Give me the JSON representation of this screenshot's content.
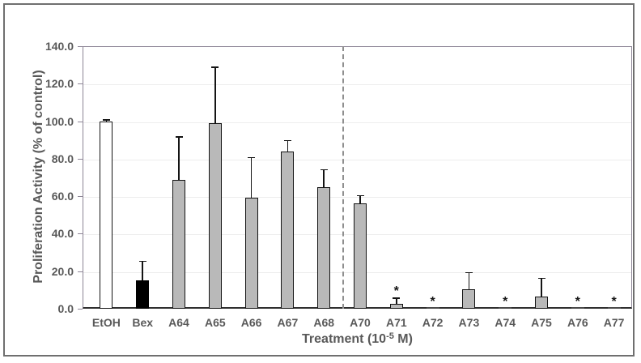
{
  "figure": {
    "y_axis_title": "Proliferation Activity (% of control)",
    "x_axis_title_prefix": "Treatment (10",
    "x_axis_title_sup": "-5",
    "x_axis_title_suffix": " M)"
  },
  "chart_data": {
    "type": "bar",
    "title": "",
    "xlabel": "Treatment (10^-5 M)",
    "ylabel": "Proliferation Activity (% of control)",
    "ylim": [
      0,
      140
    ],
    "ytick_step": 20,
    "ytick_labels": [
      "0.0",
      "20.0",
      "40.0",
      "60.0",
      "80.0",
      "100.0",
      "120.0",
      "140.0"
    ],
    "grid": "horizontal light gray, legend none",
    "categories": [
      "EtOH",
      "Bex",
      "A64",
      "A65",
      "A66",
      "A67",
      "A68",
      "A70",
      "A71",
      "A72",
      "A73",
      "A74",
      "A75",
      "A76",
      "A77"
    ],
    "values": [
      100,
      15,
      68.5,
      99,
      59,
      84,
      65,
      56,
      2.5,
      0.3,
      10.5,
      0.3,
      6.5,
      0.3,
      0.3
    ],
    "errors_upper": [
      1,
      10.5,
      23.5,
      30,
      22,
      6,
      9.5,
      4.5,
      3.5,
      0,
      9,
      0,
      10,
      0,
      0
    ],
    "significant": [
      false,
      false,
      false,
      false,
      false,
      false,
      false,
      false,
      true,
      true,
      false,
      true,
      false,
      true,
      true
    ],
    "bar_styles": [
      "white",
      "black",
      "gray",
      "gray",
      "gray",
      "gray",
      "gray",
      "gray",
      "gray",
      "gray",
      "gray",
      "gray",
      "gray",
      "gray",
      "gray"
    ],
    "bar_fill_colors": {
      "white": "#ffffff",
      "black": "#000000",
      "gray": "#b9b9b9"
    },
    "separator_after_index": 6,
    "annotations": "* = significant; dashed vertical line separates A68 and A70 groups"
  }
}
